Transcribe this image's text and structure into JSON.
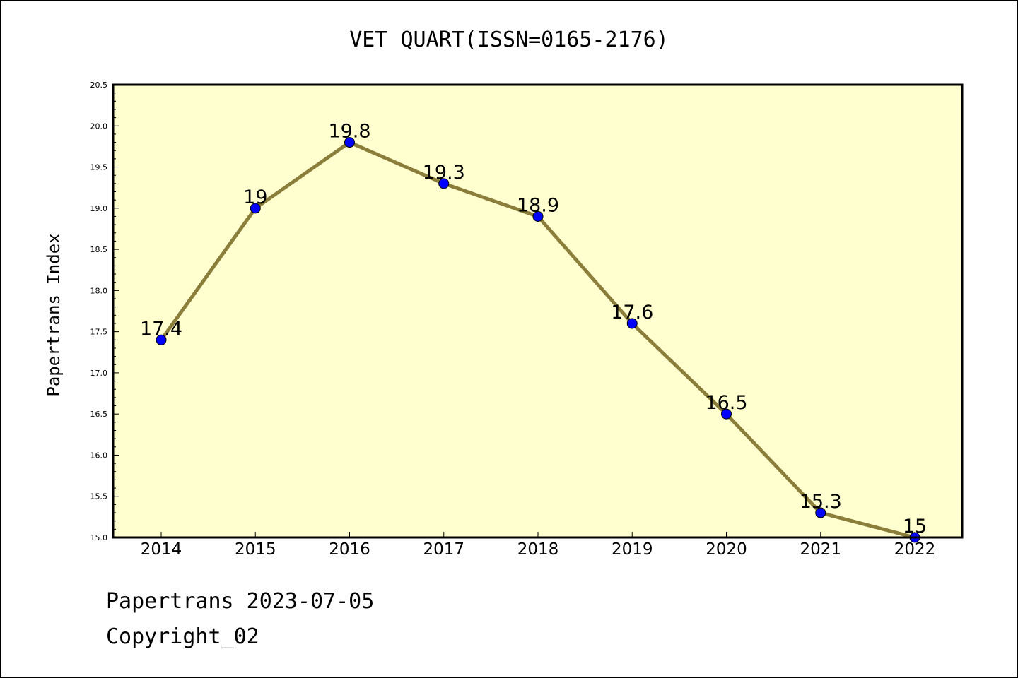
{
  "chart_data": {
    "type": "line",
    "title": "VET QUART(ISSN=0165-2176)",
    "xlabel": "",
    "ylabel": "Papertrans Index",
    "categories": [
      "2014",
      "2015",
      "2016",
      "2017",
      "2018",
      "2019",
      "2020",
      "2021",
      "2022"
    ],
    "values": [
      17.4,
      19,
      19.8,
      19.3,
      18.9,
      17.6,
      16.5,
      15.3,
      15
    ],
    "data_labels": [
      "17.4",
      "19",
      "19.8",
      "19.3",
      "18.9",
      "17.6",
      "16.5",
      "15.3",
      "15"
    ],
    "ylim": [
      15.0,
      20.5
    ],
    "yticks": [
      15.0,
      15.5,
      16.0,
      16.5,
      17.0,
      17.5,
      18.0,
      18.5,
      19.0,
      19.5,
      20.0,
      20.5
    ],
    "ytick_labels": [
      "15.0",
      "15.5",
      "16.0",
      "16.5",
      "17.0",
      "17.5",
      "18.0",
      "18.5",
      "19.0",
      "19.5",
      "20.0",
      "20.5"
    ],
    "grid": false,
    "legend": "none",
    "colors": {
      "plot_background": "#ffffd0",
      "line": "#8b7d3a",
      "marker": "#0000ff",
      "axis": "#000000"
    }
  },
  "footer": {
    "date_text": "Papertrans 2023-07-05",
    "copyright_text": "Copyright_02"
  }
}
